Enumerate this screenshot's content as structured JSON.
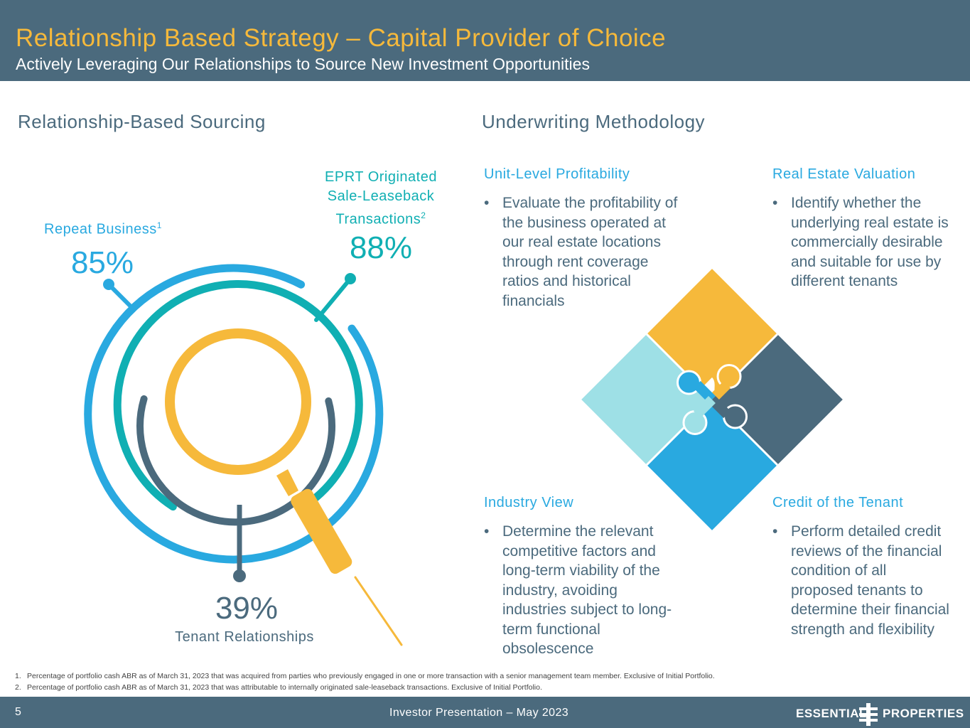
{
  "header": {
    "title": "Relationship Based Strategy – Capital Provider of Choice",
    "subtitle": "Actively Leveraging Our Relationships to Source New Investment Opportunities"
  },
  "left_section": {
    "title": "Relationship-Based Sourcing",
    "stats": {
      "repeat": {
        "label": "Repeat Business",
        "sup": "1",
        "value": "85%"
      },
      "eprt": {
        "label_lines": [
          "EPRT Originated",
          "Sale-Leaseback",
          "Transactions"
        ],
        "sup": "2",
        "value": "88%"
      },
      "tenant": {
        "value": "39%",
        "label": "Tenant Relationships"
      }
    }
  },
  "right_section": {
    "title": "Underwriting Methodology",
    "cards": [
      {
        "title": "Unit-Level Profitability",
        "text": "Evaluate the profitability of the business operated at our real estate locations through rent coverage ratios and historical financials"
      },
      {
        "title": "Real Estate Valuation",
        "text": "Identify whether the underlying real estate is commercially desirable and suitable for use by different tenants"
      },
      {
        "title": "Industry View",
        "text": "Determine the relevant competitive factors and long-term viability of the industry, avoiding industries subject to long-term functional obsolescence"
      },
      {
        "title": "Credit of the Tenant",
        "text": "Perform detailed credit reviews of the financial condition of all proposed tenants to determine their financial strength and flexibility"
      }
    ],
    "bullet": "•"
  },
  "footnotes": [
    {
      "num": "1.",
      "text": "Percentage of portfolio cash ABR as of March 31, 2023 that was acquired from parties who previously engaged in one or more transaction with a senior management team member. Exclusive of Initial Portfolio."
    },
    {
      "num": "2.",
      "text": "Percentage of portfolio cash ABR as of March 31, 2023 that was attributable to internally originated sale-leaseback transactions. Exclusive of Initial Portfolio."
    }
  ],
  "footer": {
    "page": "5",
    "center": "Investor Presentation – May 2023",
    "logo_left": "ESSENTIAL",
    "logo_right": "PROPERTIES"
  },
  "colors": {
    "slate": "#4b6a7d",
    "gold": "#f6b93b",
    "blue": "#29a9e0",
    "teal": "#10afb3",
    "light_teal": "#9ee0e6"
  },
  "icons": [
    "magnifier-icon",
    "puzzle-icon",
    "logo-mark-icon"
  ]
}
